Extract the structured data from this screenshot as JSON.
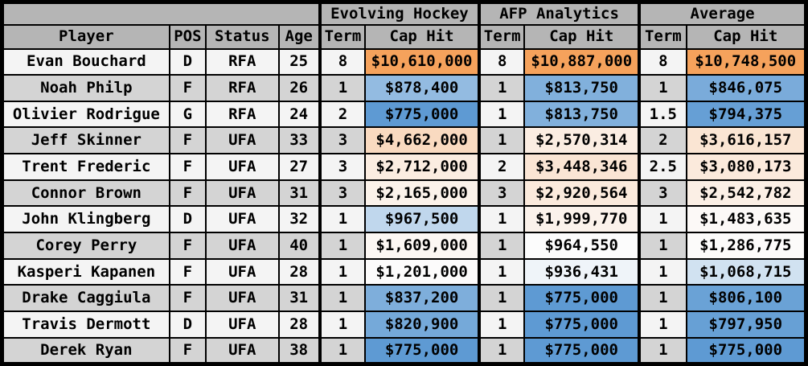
{
  "colors": {
    "header_bg": "#B5B5B5",
    "row_light": "#F4F4F4",
    "row_gray": "#D4D4D4",
    "border": "#000000",
    "scale_low_blue": "#5E9AD3",
    "scale_mid_white": "#FCFCFC",
    "scale_high_orange": "#F5A25C"
  },
  "chart_data": {
    "type": "table",
    "title": "",
    "group_headers": [
      {
        "label": "",
        "span": 4
      },
      {
        "label": "Evolving Hockey",
        "span": 2
      },
      {
        "label": "AFP Analytics",
        "span": 2
      },
      {
        "label": "Average",
        "span": 2
      }
    ],
    "columns": [
      "Player",
      "POS",
      "Status",
      "Age",
      "Term",
      "Cap Hit",
      "Term",
      "Cap Hit",
      "Term",
      "Cap Hit"
    ],
    "rows": [
      {
        "player": "Evan Bouchard",
        "pos": "D",
        "status": "RFA",
        "age": "25",
        "evolving_hockey": {
          "term": "8",
          "cap_hit": "$10,610,000",
          "cap_bg": "#F5A25C"
        },
        "afp_analytics": {
          "term": "8",
          "cap_hit": "$10,887,000",
          "cap_bg": "#F5A25C"
        },
        "average": {
          "term": "8",
          "cap_hit": "$10,748,500",
          "cap_bg": "#F5A25C"
        }
      },
      {
        "player": "Noah Philp",
        "pos": "F",
        "status": "RFA",
        "age": "26",
        "evolving_hockey": {
          "term": "1",
          "cap_hit": "$878,400",
          "cap_bg": "#93BBE1"
        },
        "afp_analytics": {
          "term": "1",
          "cap_hit": "$813,750",
          "cap_bg": "#81B0DC"
        },
        "average": {
          "term": "1",
          "cap_hit": "$846,075",
          "cap_bg": "#7AABDA"
        }
      },
      {
        "player": "Olivier Rodrigue",
        "pos": "G",
        "status": "RFA",
        "age": "24",
        "evolving_hockey": {
          "term": "2",
          "cap_hit": "$775,000",
          "cap_bg": "#5E9AD3"
        },
        "afp_analytics": {
          "term": "1",
          "cap_hit": "$813,750",
          "cap_bg": "#81B0DC"
        },
        "average": {
          "term": "1.5",
          "cap_hit": "$794,375",
          "cap_bg": "#669FD5"
        }
      },
      {
        "player": "Jeff Skinner",
        "pos": "F",
        "status": "UFA",
        "age": "33",
        "evolving_hockey": {
          "term": "3",
          "cap_hit": "$4,662,000",
          "cap_bg": "#F9DAC0"
        },
        "afp_analytics": {
          "term": "1",
          "cap_hit": "$2,570,314",
          "cap_bg": "#FBEDE2"
        },
        "average": {
          "term": "2",
          "cap_hit": "$3,616,157",
          "cap_bg": "#FAE5D3"
        }
      },
      {
        "player": "Trent Frederic",
        "pos": "F",
        "status": "UFA",
        "age": "27",
        "evolving_hockey": {
          "term": "3",
          "cap_hit": "$2,712,000",
          "cap_bg": "#FBEDE1"
        },
        "afp_analytics": {
          "term": "2",
          "cap_hit": "$3,448,346",
          "cap_bg": "#FAE5D4"
        },
        "average": {
          "term": "2.5",
          "cap_hit": "$3,080,173",
          "cap_bg": "#FBEADC"
        }
      },
      {
        "player": "Connor Brown",
        "pos": "F",
        "status": "UFA",
        "age": "31",
        "evolving_hockey": {
          "term": "3",
          "cap_hit": "$2,165,000",
          "cap_bg": "#FBF2EA"
        },
        "afp_analytics": {
          "term": "3",
          "cap_hit": "$2,920,564",
          "cap_bg": "#FBEADC"
        },
        "average": {
          "term": "3",
          "cap_hit": "$2,542,782",
          "cap_bg": "#FBEFE5"
        }
      },
      {
        "player": "John Klingberg",
        "pos": "D",
        "status": "UFA",
        "age": "32",
        "evolving_hockey": {
          "term": "1",
          "cap_hit": "$967,500",
          "cap_bg": "#C0D7ED"
        },
        "afp_analytics": {
          "term": "1",
          "cap_hit": "$1,999,770",
          "cap_bg": "#FBF2EB"
        },
        "average": {
          "term": "1",
          "cap_hit": "$1,483,635",
          "cap_bg": "#FCF9F7"
        }
      },
      {
        "player": "Corey Perry",
        "pos": "F",
        "status": "UFA",
        "age": "40",
        "evolving_hockey": {
          "term": "1",
          "cap_hit": "$1,609,000",
          "cap_bg": "#FCF7F3"
        },
        "afp_analytics": {
          "term": "1",
          "cap_hit": "$964,550",
          "cap_bg": "#FCFCFC"
        },
        "average": {
          "term": "1",
          "cap_hit": "$1,286,775",
          "cap_bg": "#FCFBFA"
        }
      },
      {
        "player": "Kasperi Kapanen",
        "pos": "F",
        "status": "UFA",
        "age": "28",
        "evolving_hockey": {
          "term": "1",
          "cap_hit": "$1,201,000",
          "cap_bg": "#FCFBFB"
        },
        "afp_analytics": {
          "term": "1",
          "cap_hit": "$936,431",
          "cap_bg": "#EFF4F9"
        },
        "average": {
          "term": "1",
          "cap_hit": "$1,068,715",
          "cap_bg": "#D1E2F1"
        }
      },
      {
        "player": "Drake Caggiula",
        "pos": "F",
        "status": "UFA",
        "age": "31",
        "evolving_hockey": {
          "term": "1",
          "cap_hit": "$837,200",
          "cap_bg": "#7EAEDB"
        },
        "afp_analytics": {
          "term": "1",
          "cap_hit": "$775,000",
          "cap_bg": "#5E9AD3"
        },
        "average": {
          "term": "1",
          "cap_hit": "$806,100",
          "cap_bg": "#6AA2D6"
        }
      },
      {
        "player": "Travis Dermott",
        "pos": "D",
        "status": "UFA",
        "age": "28",
        "evolving_hockey": {
          "term": "1",
          "cap_hit": "$820,900",
          "cap_bg": "#75A9D9"
        },
        "afp_analytics": {
          "term": "1",
          "cap_hit": "$775,000",
          "cap_bg": "#5E9AD3"
        },
        "average": {
          "term": "1",
          "cap_hit": "$797,950",
          "cap_bg": "#67A0D5"
        }
      },
      {
        "player": "Derek Ryan",
        "pos": "F",
        "status": "UFA",
        "age": "38",
        "evolving_hockey": {
          "term": "1",
          "cap_hit": "$775,000",
          "cap_bg": "#5E9AD3"
        },
        "afp_analytics": {
          "term": "1",
          "cap_hit": "$775,000",
          "cap_bg": "#5E9AD3"
        },
        "average": {
          "term": "1",
          "cap_hit": "$775,000",
          "cap_bg": "#5E9AD3"
        }
      }
    ]
  }
}
